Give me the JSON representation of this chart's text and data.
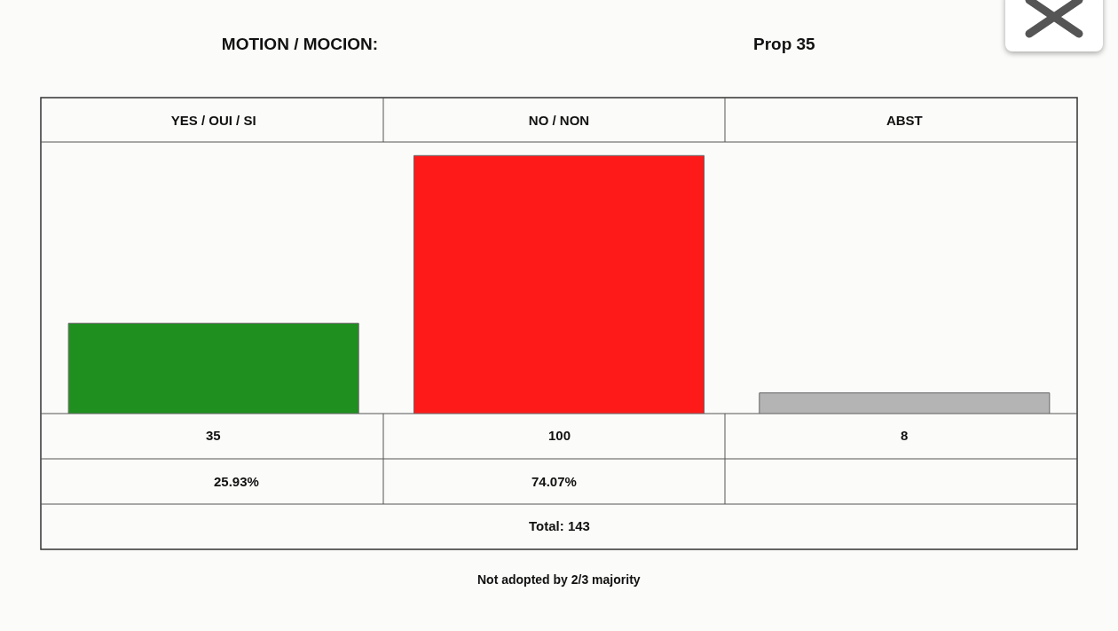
{
  "chart_data": {
    "type": "bar",
    "title": "MOTION / MOCION:",
    "subtitle": "Prop 35",
    "categories": [
      "YES / OUI / SI",
      "NO / NON",
      "ABST"
    ],
    "values": [
      35,
      100,
      8
    ],
    "colors": [
      "#1f8f1f",
      "#ff1a1a",
      "#b4b4b4"
    ],
    "data_labels": true,
    "annotations": [
      "25.93%",
      "74.07%",
      "Total: 143",
      "Not adopted by 2/3 majority"
    ],
    "grid": false,
    "legend": false
  }
}
